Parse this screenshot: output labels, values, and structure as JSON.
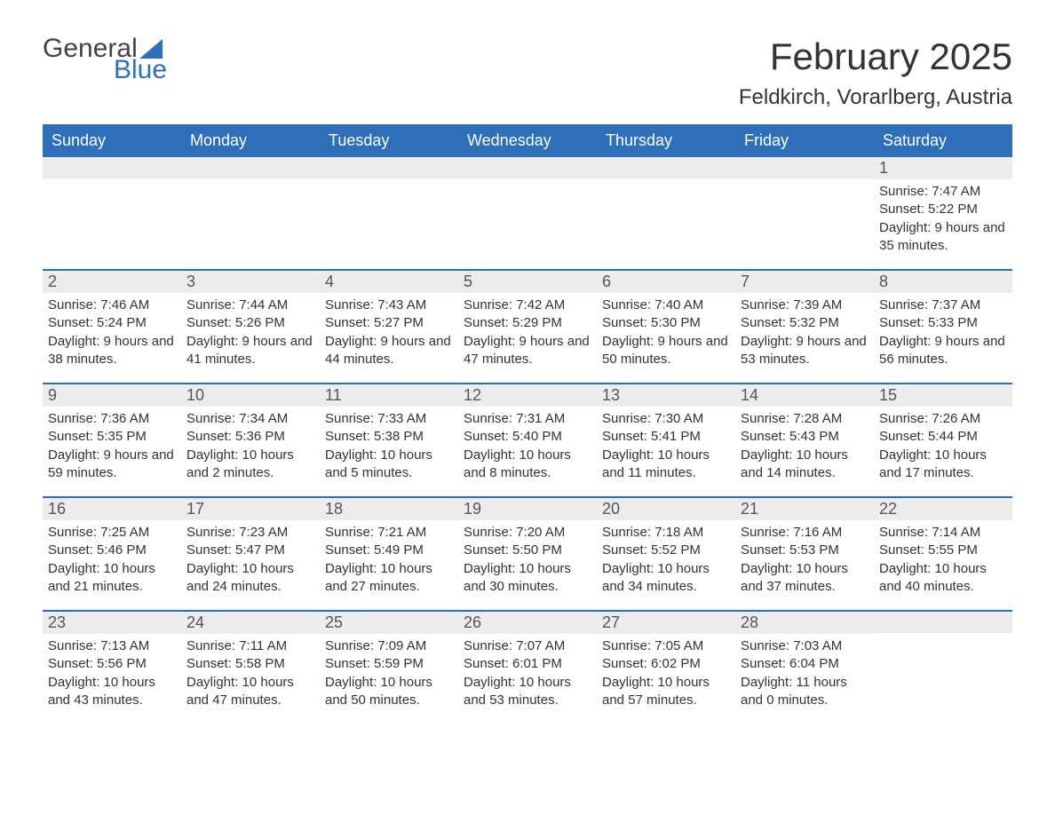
{
  "logo": {
    "word1": "General",
    "word2": "Blue",
    "word1_color": "#444444",
    "word2_color": "#2d6fb8",
    "sail_color": "#2d6fb8"
  },
  "title": "February 2025",
  "location": "Feldkirch, Vorarlberg, Austria",
  "colors": {
    "header_bg": "#2d6fb8",
    "header_text": "#ffffff",
    "daynum_bg": "#ececec",
    "daynum_text": "#555555",
    "body_text": "#333333",
    "row_border": "#2d6fb8",
    "page_bg": "#ffffff"
  },
  "typography": {
    "title_fontsize": 42,
    "location_fontsize": 24,
    "header_fontsize": 18,
    "daynum_fontsize": 18,
    "body_fontsize": 15,
    "font_family": "Arial"
  },
  "day_headers": [
    "Sunday",
    "Monday",
    "Tuesday",
    "Wednesday",
    "Thursday",
    "Friday",
    "Saturday"
  ],
  "weeks": [
    [
      {
        "num": "",
        "sunrise": "",
        "sunset": "",
        "daylight": ""
      },
      {
        "num": "",
        "sunrise": "",
        "sunset": "",
        "daylight": ""
      },
      {
        "num": "",
        "sunrise": "",
        "sunset": "",
        "daylight": ""
      },
      {
        "num": "",
        "sunrise": "",
        "sunset": "",
        "daylight": ""
      },
      {
        "num": "",
        "sunrise": "",
        "sunset": "",
        "daylight": ""
      },
      {
        "num": "",
        "sunrise": "",
        "sunset": "",
        "daylight": ""
      },
      {
        "num": "1",
        "sunrise": "Sunrise: 7:47 AM",
        "sunset": "Sunset: 5:22 PM",
        "daylight": "Daylight: 9 hours and 35 minutes."
      }
    ],
    [
      {
        "num": "2",
        "sunrise": "Sunrise: 7:46 AM",
        "sunset": "Sunset: 5:24 PM",
        "daylight": "Daylight: 9 hours and 38 minutes."
      },
      {
        "num": "3",
        "sunrise": "Sunrise: 7:44 AM",
        "sunset": "Sunset: 5:26 PM",
        "daylight": "Daylight: 9 hours and 41 minutes."
      },
      {
        "num": "4",
        "sunrise": "Sunrise: 7:43 AM",
        "sunset": "Sunset: 5:27 PM",
        "daylight": "Daylight: 9 hours and 44 minutes."
      },
      {
        "num": "5",
        "sunrise": "Sunrise: 7:42 AM",
        "sunset": "Sunset: 5:29 PM",
        "daylight": "Daylight: 9 hours and 47 minutes."
      },
      {
        "num": "6",
        "sunrise": "Sunrise: 7:40 AM",
        "sunset": "Sunset: 5:30 PM",
        "daylight": "Daylight: 9 hours and 50 minutes."
      },
      {
        "num": "7",
        "sunrise": "Sunrise: 7:39 AM",
        "sunset": "Sunset: 5:32 PM",
        "daylight": "Daylight: 9 hours and 53 minutes."
      },
      {
        "num": "8",
        "sunrise": "Sunrise: 7:37 AM",
        "sunset": "Sunset: 5:33 PM",
        "daylight": "Daylight: 9 hours and 56 minutes."
      }
    ],
    [
      {
        "num": "9",
        "sunrise": "Sunrise: 7:36 AM",
        "sunset": "Sunset: 5:35 PM",
        "daylight": "Daylight: 9 hours and 59 minutes."
      },
      {
        "num": "10",
        "sunrise": "Sunrise: 7:34 AM",
        "sunset": "Sunset: 5:36 PM",
        "daylight": "Daylight: 10 hours and 2 minutes."
      },
      {
        "num": "11",
        "sunrise": "Sunrise: 7:33 AM",
        "sunset": "Sunset: 5:38 PM",
        "daylight": "Daylight: 10 hours and 5 minutes."
      },
      {
        "num": "12",
        "sunrise": "Sunrise: 7:31 AM",
        "sunset": "Sunset: 5:40 PM",
        "daylight": "Daylight: 10 hours and 8 minutes."
      },
      {
        "num": "13",
        "sunrise": "Sunrise: 7:30 AM",
        "sunset": "Sunset: 5:41 PM",
        "daylight": "Daylight: 10 hours and 11 minutes."
      },
      {
        "num": "14",
        "sunrise": "Sunrise: 7:28 AM",
        "sunset": "Sunset: 5:43 PM",
        "daylight": "Daylight: 10 hours and 14 minutes."
      },
      {
        "num": "15",
        "sunrise": "Sunrise: 7:26 AM",
        "sunset": "Sunset: 5:44 PM",
        "daylight": "Daylight: 10 hours and 17 minutes."
      }
    ],
    [
      {
        "num": "16",
        "sunrise": "Sunrise: 7:25 AM",
        "sunset": "Sunset: 5:46 PM",
        "daylight": "Daylight: 10 hours and 21 minutes."
      },
      {
        "num": "17",
        "sunrise": "Sunrise: 7:23 AM",
        "sunset": "Sunset: 5:47 PM",
        "daylight": "Daylight: 10 hours and 24 minutes."
      },
      {
        "num": "18",
        "sunrise": "Sunrise: 7:21 AM",
        "sunset": "Sunset: 5:49 PM",
        "daylight": "Daylight: 10 hours and 27 minutes."
      },
      {
        "num": "19",
        "sunrise": "Sunrise: 7:20 AM",
        "sunset": "Sunset: 5:50 PM",
        "daylight": "Daylight: 10 hours and 30 minutes."
      },
      {
        "num": "20",
        "sunrise": "Sunrise: 7:18 AM",
        "sunset": "Sunset: 5:52 PM",
        "daylight": "Daylight: 10 hours and 34 minutes."
      },
      {
        "num": "21",
        "sunrise": "Sunrise: 7:16 AM",
        "sunset": "Sunset: 5:53 PM",
        "daylight": "Daylight: 10 hours and 37 minutes."
      },
      {
        "num": "22",
        "sunrise": "Sunrise: 7:14 AM",
        "sunset": "Sunset: 5:55 PM",
        "daylight": "Daylight: 10 hours and 40 minutes."
      }
    ],
    [
      {
        "num": "23",
        "sunrise": "Sunrise: 7:13 AM",
        "sunset": "Sunset: 5:56 PM",
        "daylight": "Daylight: 10 hours and 43 minutes."
      },
      {
        "num": "24",
        "sunrise": "Sunrise: 7:11 AM",
        "sunset": "Sunset: 5:58 PM",
        "daylight": "Daylight: 10 hours and 47 minutes."
      },
      {
        "num": "25",
        "sunrise": "Sunrise: 7:09 AM",
        "sunset": "Sunset: 5:59 PM",
        "daylight": "Daylight: 10 hours and 50 minutes."
      },
      {
        "num": "26",
        "sunrise": "Sunrise: 7:07 AM",
        "sunset": "Sunset: 6:01 PM",
        "daylight": "Daylight: 10 hours and 53 minutes."
      },
      {
        "num": "27",
        "sunrise": "Sunrise: 7:05 AM",
        "sunset": "Sunset: 6:02 PM",
        "daylight": "Daylight: 10 hours and 57 minutes."
      },
      {
        "num": "28",
        "sunrise": "Sunrise: 7:03 AM",
        "sunset": "Sunset: 6:04 PM",
        "daylight": "Daylight: 11 hours and 0 minutes."
      },
      {
        "num": "",
        "sunrise": "",
        "sunset": "",
        "daylight": ""
      }
    ]
  ]
}
